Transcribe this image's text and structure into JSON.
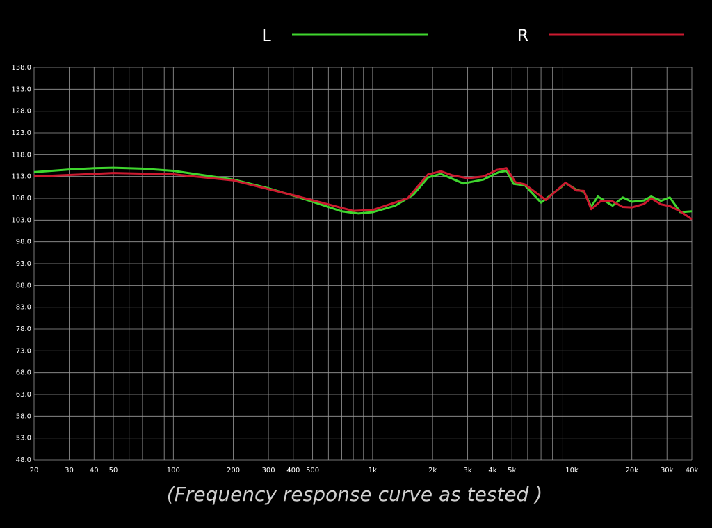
{
  "chart_data": {
    "type": "line",
    "x_label": "(Frequency response curve as tested )",
    "log_x": true,
    "grid": true,
    "xlim": [
      20,
      40000
    ],
    "xticks": [
      20,
      30,
      40,
      50,
      100,
      200,
      300,
      400,
      500,
      {
        "value": 1000,
        "label": "1k"
      },
      {
        "value": 2000,
        "label": "2k"
      },
      {
        "value": 3000,
        "label": "3k"
      },
      {
        "value": 4000,
        "label": "4k"
      },
      {
        "value": 5000,
        "label": "5k"
      },
      {
        "value": 10000,
        "label": "10k"
      },
      {
        "value": 20000,
        "label": "20k"
      },
      {
        "value": 30000,
        "label": "30k"
      },
      {
        "value": 40000,
        "label": "40k"
      }
    ],
    "x_minor_ticks": [
      60,
      70,
      80,
      90,
      600,
      700,
      800,
      900,
      6000,
      7000,
      8000,
      9000
    ],
    "ylim": [
      48,
      138
    ],
    "yticks": [
      {
        "value": 48,
        "label": "48.0"
      },
      {
        "value": 53,
        "label": "53.0"
      },
      {
        "value": 58,
        "label": "58.0"
      },
      {
        "value": 63,
        "label": "63.0"
      },
      {
        "value": 68,
        "label": "68.0"
      },
      {
        "value": 73,
        "label": "73.0"
      },
      {
        "value": 78,
        "label": "78.0"
      },
      {
        "value": 83,
        "label": "83.0"
      },
      {
        "value": 88,
        "label": "88.0"
      },
      {
        "value": 93,
        "label": "93.0"
      },
      {
        "value": 98,
        "label": "98.0"
      },
      {
        "value": 103,
        "label": "103.0"
      },
      {
        "value": 108,
        "label": "108.0"
      },
      {
        "value": 113,
        "label": "113.0"
      },
      {
        "value": 118,
        "label": "118.0"
      },
      {
        "value": 123,
        "label": "123.0"
      },
      {
        "value": 128,
        "label": "128.0"
      },
      {
        "value": 133,
        "label": "133.0"
      },
      {
        "value": 138,
        "label": "138.0"
      }
    ],
    "series": [
      {
        "name": "L",
        "color": "#3fd62e",
        "x": [
          20,
          30,
          40,
          50,
          70,
          100,
          200,
          300,
          400,
          500,
          700,
          850,
          1000,
          1300,
          1600,
          1900,
          2200,
          2500,
          2850,
          3600,
          4300,
          4700,
          5100,
          5800,
          7000,
          8800,
          9300,
          10500,
          11500,
          12500,
          13500,
          14500,
          16000,
          18000,
          20000,
          23000,
          25000,
          28000,
          31000,
          35000,
          40000
        ],
        "values": [
          114.0,
          114.6,
          114.9,
          115.0,
          114.8,
          114.3,
          112.3,
          110.3,
          108.6,
          107.2,
          105.0,
          104.5,
          104.8,
          106.3,
          108.8,
          112.8,
          113.6,
          112.5,
          111.4,
          112.3,
          114.0,
          114.3,
          111.3,
          111.0,
          107.0,
          110.5,
          111.5,
          110.0,
          109.5,
          106.1,
          108.4,
          107.5,
          106.3,
          108.2,
          107.2,
          107.5,
          108.4,
          107.4,
          108.2,
          104.8,
          105.0
        ]
      },
      {
        "name": "R",
        "color": "#cc1a30",
        "x": [
          20,
          50,
          100,
          200,
          400,
          800,
          1000,
          1500,
          1900,
          2200,
          2500,
          3000,
          3600,
          4200,
          4700,
          5200,
          5800,
          7400,
          9300,
          10500,
          11500,
          12500,
          14000,
          16000,
          18000,
          20000,
          23000,
          25000,
          28000,
          31000,
          35000,
          40000
        ],
        "values": [
          113.0,
          113.8,
          113.5,
          112.1,
          108.7,
          105.1,
          105.3,
          108.0,
          113.5,
          114.2,
          113.3,
          112.6,
          113.0,
          114.5,
          114.9,
          111.7,
          111.2,
          107.6,
          111.6,
          109.8,
          109.7,
          105.5,
          107.4,
          107.3,
          106.0,
          105.9,
          106.7,
          108.0,
          106.6,
          106.2,
          105.0,
          103.2
        ]
      }
    ]
  }
}
